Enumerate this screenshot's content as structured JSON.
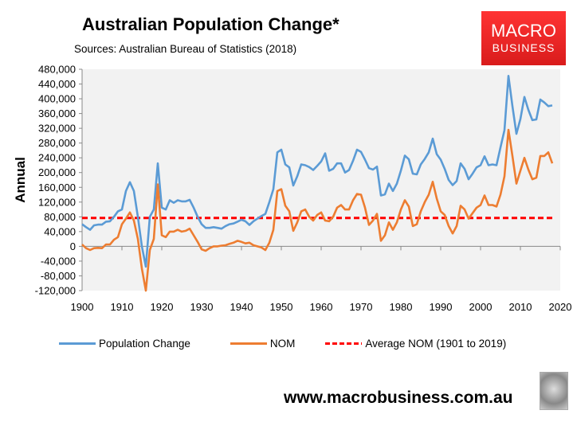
{
  "header": {
    "title": "Australian Population Change*",
    "subtitle": "Sources: Australian Bureau of Statistics (2018)"
  },
  "logo": {
    "line1": "MACRO",
    "line2": "BUSINESS"
  },
  "footer": {
    "url": "www.macrobusiness.com.au"
  },
  "chart_data": {
    "type": "line",
    "title": "Australian Population Change*",
    "xlabel": "",
    "ylabel": "Annual",
    "xlim": [
      1900,
      2020
    ],
    "ylim": [
      -120000,
      480000
    ],
    "xticks": [
      "1900",
      "1910",
      "1920",
      "1930",
      "1940",
      "1950",
      "1960",
      "1970",
      "1980",
      "1990",
      "2000",
      "2010",
      "2020"
    ],
    "yticks": [
      "480,000",
      "440,000",
      "400,000",
      "360,000",
      "320,000",
      "280,000",
      "240,000",
      "200,000",
      "160,000",
      "120,000",
      "80,000",
      "40,000",
      "0",
      "-40,000",
      "-80,000",
      "-120,000"
    ],
    "legend_position": "bottom",
    "colors": {
      "pop": "#5b9bd5",
      "nom": "#ed7d31",
      "avg": "#ff0000",
      "plot_bg": "#f2f2f2"
    },
    "x_start": 1900,
    "series": [
      {
        "name": "Population Change",
        "values": [
          60000,
          52000,
          45000,
          57000,
          59000,
          59000,
          67000,
          68000,
          80000,
          95000,
          100000,
          150000,
          174000,
          150000,
          80000,
          0,
          -55000,
          80000,
          100000,
          225000,
          105000,
          100000,
          125000,
          118000,
          125000,
          122000,
          122000,
          126000,
          105000,
          80000,
          60000,
          50000,
          50000,
          52000,
          50000,
          48000,
          55000,
          60000,
          62000,
          67000,
          72000,
          68000,
          58000,
          68000,
          75000,
          82000,
          88000,
          120000,
          155000,
          255000,
          262000,
          222000,
          214000,
          165000,
          190000,
          222000,
          220000,
          215000,
          207000,
          218000,
          230000,
          252000,
          205000,
          210000,
          225000,
          225000,
          200000,
          207000,
          232000,
          262000,
          256000,
          235000,
          212000,
          208000,
          216000,
          138000,
          141000,
          170000,
          150000,
          170000,
          205000,
          246000,
          236000,
          197000,
          195000,
          222000,
          237000,
          255000,
          292000,
          250000,
          235000,
          210000,
          180000,
          166000,
          177000,
          225000,
          210000,
          182000,
          197000,
          214000,
          220000,
          244000,
          220000,
          222000,
          220000,
          268000,
          315000,
          462000,
          380000,
          305000,
          345000,
          405000,
          370000,
          342000,
          344000,
          398000,
          390000,
          380000,
          382000
        ]
      },
      {
        "name": "NOM",
        "values": [
          5000,
          -5000,
          -10000,
          -5000,
          -4000,
          -5000,
          5000,
          5000,
          18000,
          25000,
          60000,
          75000,
          92000,
          70000,
          20000,
          -60000,
          -120000,
          -10000,
          20000,
          168000,
          30000,
          25000,
          40000,
          40000,
          45000,
          40000,
          42000,
          48000,
          30000,
          12000,
          -8000,
          -12000,
          -5000,
          0,
          0,
          2000,
          3000,
          7000,
          10000,
          15000,
          12000,
          8000,
          10000,
          3000,
          0,
          -3000,
          -10000,
          10000,
          45000,
          150000,
          155000,
          110000,
          95000,
          42000,
          65000,
          95000,
          100000,
          80000,
          70000,
          85000,
          92000,
          70000,
          68000,
          80000,
          105000,
          112000,
          100000,
          100000,
          125000,
          142000,
          140000,
          105000,
          58000,
          70000,
          88000,
          15000,
          30000,
          65000,
          45000,
          65000,
          100000,
          125000,
          108000,
          55000,
          60000,
          95000,
          120000,
          140000,
          175000,
          130000,
          95000,
          85000,
          55000,
          35000,
          55000,
          110000,
          100000,
          75000,
          90000,
          105000,
          112000,
          138000,
          112000,
          112000,
          108000,
          140000,
          190000,
          316000,
          245000,
          170000,
          205000,
          240000,
          208000,
          182000,
          186000,
          245000,
          245000,
          255000,
          225000
        ]
      },
      {
        "name": "Average NOM (1901 to 2019)",
        "value": 77000,
        "x_range": [
          1900,
          2018
        ]
      }
    ]
  }
}
